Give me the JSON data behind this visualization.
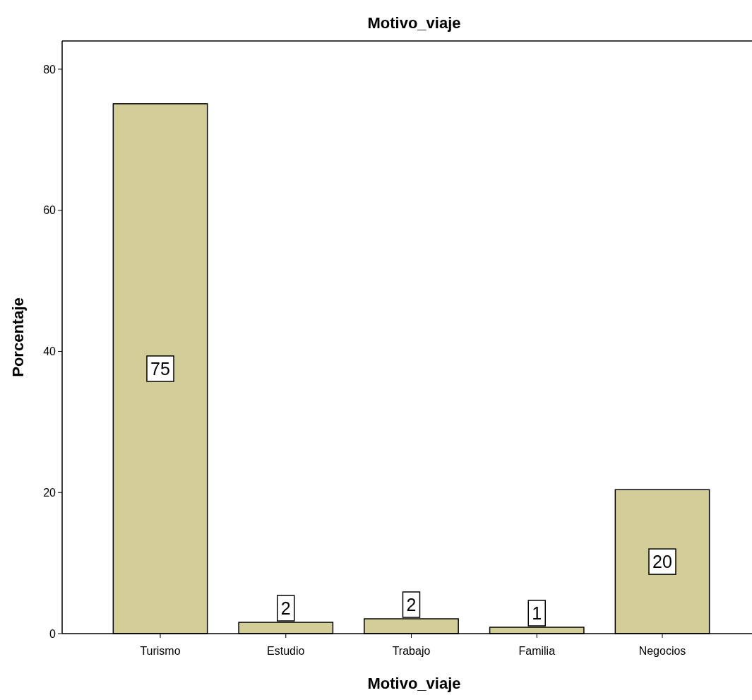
{
  "chart_data": {
    "type": "bar",
    "title": "Motivo_viaje",
    "xlabel": "Motivo_viaje",
    "ylabel": "Porcentaje",
    "categories": [
      "Turismo",
      "Estudio",
      "Trabajo",
      "Familia",
      "Negocios"
    ],
    "values": [
      75.1,
      1.6,
      2.1,
      0.9,
      20.4
    ],
    "value_labels": [
      "75",
      "2",
      "2",
      "1",
      "20"
    ],
    "color": "#d3ce97",
    "ylim": [
      0,
      84
    ],
    "yticks": [
      0,
      20,
      40,
      60,
      80
    ],
    "grid": false
  }
}
